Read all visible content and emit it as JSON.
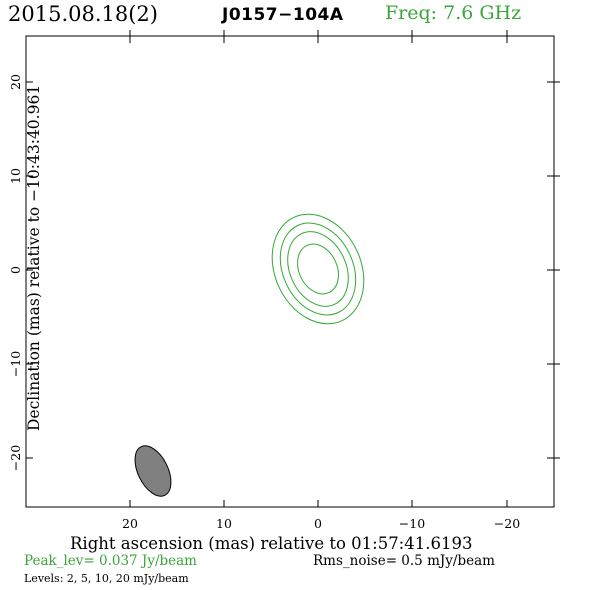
{
  "header": {
    "date": "2015.08.18(2)",
    "source": "J0157−104A",
    "frequency": "Freq: 7.6 GHz"
  },
  "axes": {
    "ylabel": "Declination (mas) relative to −10:43:40.961",
    "xlabel": "Right ascension (mas) relative to 01:57:41.6193",
    "x_ticks": [
      "20",
      "10",
      "0",
      "−10",
      "−20"
    ],
    "y_ticks": [
      "20",
      "10",
      "0",
      "−10",
      "−20"
    ]
  },
  "footer": {
    "peak": "Peak_lev=  0.037 Jy/beam",
    "rms": "Rms_noise=   0.5 mJy/beam",
    "levels": "Levels:   2,   5,  10,  20 mJy/beam"
  },
  "colors": {
    "contour": "#33aa33",
    "beam_fill": "#808080",
    "freq_text": "#3aa53a"
  }
}
